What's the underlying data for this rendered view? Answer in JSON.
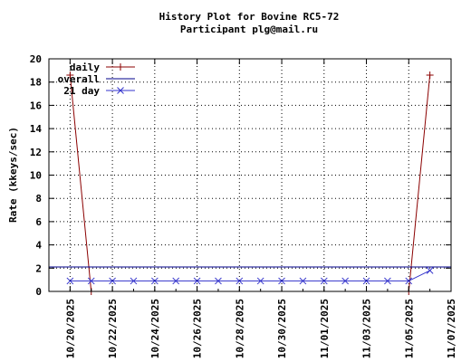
{
  "chart_data": {
    "type": "line",
    "title": "History Plot for Bovine RC5-72",
    "subtitle": "Participant plg@mail.ru",
    "xlabel": "",
    "ylabel": "Rate (kkeys/sec)",
    "ylim": [
      0,
      20
    ],
    "yticks": [
      0,
      2,
      4,
      6,
      8,
      10,
      12,
      14,
      16,
      18,
      20
    ],
    "xlim": [
      "2025-10-19",
      "2025-11-07"
    ],
    "xticks": [
      "10/20/2025",
      "10/22/2025",
      "10/24/2025",
      "10/26/2025",
      "10/28/2025",
      "10/30/2025",
      "11/01/2025",
      "11/03/2025",
      "11/05/2025",
      "11/07/2025"
    ],
    "grid": true,
    "legend_position": "top-left",
    "colors": {
      "daily": "#8b0000",
      "overall": "#00008b",
      "21day": "#3333cc",
      "grid": "#000000"
    },
    "series": [
      {
        "name": "daily",
        "marker": "plus",
        "x": [
          "2025-10-20",
          "2025-10-21",
          "2025-11-05",
          "2025-11-06"
        ],
        "y": [
          18.6,
          0.0,
          0.0,
          18.6
        ]
      },
      {
        "name": "overall",
        "marker": "none",
        "x": [
          "2025-10-19",
          "2025-11-07"
        ],
        "y": [
          2.1,
          2.1
        ]
      },
      {
        "name": "21 day",
        "marker": "x",
        "x": [
          "2025-10-20",
          "2025-10-21",
          "2025-10-22",
          "2025-10-23",
          "2025-10-24",
          "2025-10-25",
          "2025-10-26",
          "2025-10-27",
          "2025-10-28",
          "2025-10-29",
          "2025-10-30",
          "2025-10-31",
          "2025-11-01",
          "2025-11-02",
          "2025-11-03",
          "2025-11-04",
          "2025-11-05",
          "2025-11-06"
        ],
        "y": [
          0.9,
          0.9,
          0.9,
          0.9,
          0.9,
          0.9,
          0.9,
          0.9,
          0.9,
          0.9,
          0.9,
          0.9,
          0.9,
          0.9,
          0.9,
          0.9,
          0.9,
          1.8
        ]
      }
    ]
  }
}
